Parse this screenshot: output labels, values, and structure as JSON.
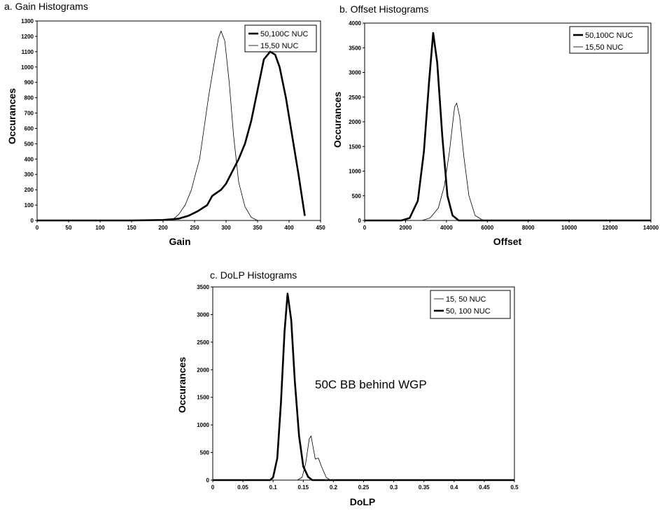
{
  "chart_data": [
    {
      "id": "gain",
      "type": "line",
      "title": "a. Gain Histograms",
      "xlabel": "Gain",
      "ylabel": "Occurances",
      "xlim": [
        0,
        450
      ],
      "ylim": [
        0,
        1300
      ],
      "xticks": [
        0,
        50,
        100,
        150,
        200,
        250,
        300,
        350,
        400,
        450
      ],
      "yticks": [
        0,
        100,
        200,
        300,
        400,
        500,
        600,
        700,
        800,
        900,
        1000,
        1100,
        1200,
        1300
      ],
      "grid": false,
      "legend_position": "top-right",
      "series": [
        {
          "name": "50,100C NUC",
          "style": "thick",
          "points": [
            [
              0,
              0
            ],
            [
              150,
              0
            ],
            [
              200,
              3
            ],
            [
              215,
              8
            ],
            [
              225,
              12
            ],
            [
              240,
              30
            ],
            [
              255,
              60
            ],
            [
              270,
              100
            ],
            [
              278,
              160
            ],
            [
              285,
              180
            ],
            [
              292,
              200
            ],
            [
              300,
              240
            ],
            [
              310,
              320
            ],
            [
              320,
              400
            ],
            [
              330,
              500
            ],
            [
              340,
              650
            ],
            [
              350,
              850
            ],
            [
              360,
              1050
            ],
            [
              370,
              1100
            ],
            [
              378,
              1080
            ],
            [
              385,
              1000
            ],
            [
              395,
              800
            ],
            [
              405,
              550
            ],
            [
              415,
              300
            ],
            [
              425,
              30
            ]
          ]
        },
        {
          "name": "15,50 NUC",
          "style": "thin",
          "points": [
            [
              0,
              0
            ],
            [
              150,
              0
            ],
            [
              200,
              3
            ],
            [
              215,
              5
            ],
            [
              225,
              40
            ],
            [
              235,
              100
            ],
            [
              245,
              200
            ],
            [
              250,
              280
            ],
            [
              258,
              400
            ],
            [
              265,
              600
            ],
            [
              272,
              800
            ],
            [
              280,
              1000
            ],
            [
              288,
              1190
            ],
            [
              292,
              1235
            ],
            [
              298,
              1170
            ],
            [
              305,
              900
            ],
            [
              312,
              550
            ],
            [
              320,
              250
            ],
            [
              330,
              90
            ],
            [
              340,
              20
            ],
            [
              350,
              0
            ],
            [
              450,
              0
            ]
          ]
        }
      ]
    },
    {
      "id": "offset",
      "type": "line",
      "title": "b. Offset Histograms",
      "xlabel": "Offset",
      "ylabel": "Occurances",
      "xlim": [
        0,
        14000
      ],
      "ylim": [
        0,
        4000
      ],
      "xticks": [
        0,
        2000,
        4000,
        6000,
        8000,
        10000,
        12000,
        14000
      ],
      "yticks": [
        0,
        500,
        1000,
        1500,
        2000,
        2500,
        3000,
        3500,
        4000
      ],
      "grid": false,
      "legend_position": "top-right",
      "series": [
        {
          "name": "50,100C NUC",
          "style": "thick",
          "points": [
            [
              0,
              0
            ],
            [
              1800,
              0
            ],
            [
              2200,
              50
            ],
            [
              2600,
              400
            ],
            [
              2900,
              1400
            ],
            [
              3150,
              2800
            ],
            [
              3350,
              3800
            ],
            [
              3550,
              3200
            ],
            [
              3800,
              1700
            ],
            [
              4050,
              500
            ],
            [
              4300,
              100
            ],
            [
              4600,
              0
            ],
            [
              14000,
              0
            ]
          ]
        },
        {
          "name": "15,50 NUC",
          "style": "thin",
          "points": [
            [
              0,
              0
            ],
            [
              2800,
              0
            ],
            [
              3200,
              50
            ],
            [
              3600,
              250
            ],
            [
              3900,
              700
            ],
            [
              4150,
              1400
            ],
            [
              4400,
              2300
            ],
            [
              4500,
              2380
            ],
            [
              4650,
              2100
            ],
            [
              4850,
              1300
            ],
            [
              5100,
              500
            ],
            [
              5400,
              100
            ],
            [
              5800,
              0
            ],
            [
              14000,
              0
            ]
          ]
        }
      ]
    },
    {
      "id": "dolp",
      "type": "line",
      "title": "c. DoLP Histograms",
      "xlabel": "DoLP",
      "ylabel": "Occurances",
      "xlim": [
        0,
        0.5
      ],
      "ylim": [
        0,
        3500
      ],
      "xticks": [
        0,
        0.05,
        0.1,
        0.15,
        0.2,
        0.25,
        0.3,
        0.35,
        0.4,
        0.45,
        0.5
      ],
      "yticks": [
        0,
        500,
        1000,
        1500,
        2000,
        2500,
        3000,
        3500
      ],
      "grid": false,
      "legend_position": "top-right",
      "annotation": "50C BB behind WGP",
      "series": [
        {
          "name": "15, 50 NUC",
          "style": "thin",
          "points": [
            [
              0,
              0
            ],
            [
              0.14,
              0
            ],
            [
              0.148,
              50
            ],
            [
              0.154,
              300
            ],
            [
              0.16,
              750
            ],
            [
              0.163,
              800
            ],
            [
              0.167,
              550
            ],
            [
              0.17,
              380
            ],
            [
              0.175,
              400
            ],
            [
              0.18,
              250
            ],
            [
              0.188,
              50
            ],
            [
              0.195,
              0
            ],
            [
              0.5,
              0
            ]
          ]
        },
        {
          "name": "50, 100 NUC",
          "style": "thick",
          "points": [
            [
              0,
              0
            ],
            [
              0.095,
              0
            ],
            [
              0.1,
              50
            ],
            [
              0.107,
              400
            ],
            [
              0.113,
              1400
            ],
            [
              0.119,
              2700
            ],
            [
              0.124,
              3380
            ],
            [
              0.13,
              2900
            ],
            [
              0.136,
              1800
            ],
            [
              0.143,
              800
            ],
            [
              0.15,
              250
            ],
            [
              0.158,
              60
            ],
            [
              0.165,
              0
            ],
            [
              0.5,
              0
            ]
          ]
        }
      ]
    }
  ]
}
